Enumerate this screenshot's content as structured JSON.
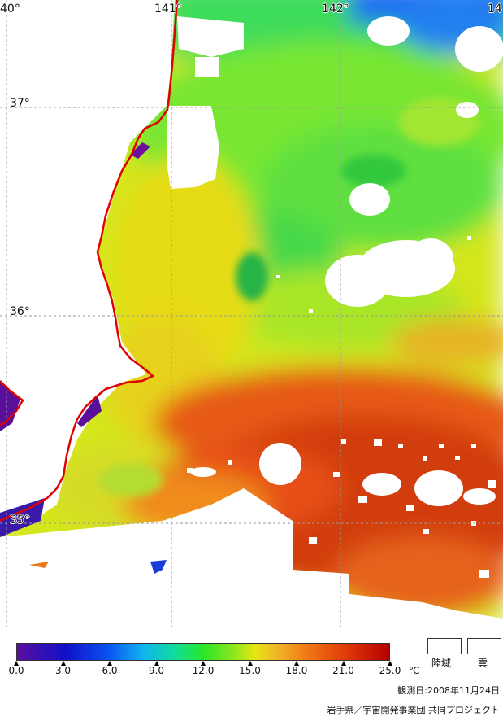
{
  "map": {
    "lon_labels": [
      "40°",
      "141°",
      "142°",
      "14"
    ],
    "lat_labels": [
      "37°",
      "36°",
      "35°"
    ]
  },
  "colorbar": {
    "ticks": [
      "0.0",
      "3.0",
      "6.0",
      "9.0",
      "12.0",
      "15.0",
      "18.0",
      "21.0",
      "25.0"
    ],
    "unit": "℃"
  },
  "legend": {
    "land": "陸域",
    "cloud": "雲"
  },
  "observation_date": "観測日:2008年11月24日",
  "credit": "岩手県／宇宙開発事業団 共同プロジェクト",
  "colors": {
    "coast": "#e00000",
    "grid": "#999999"
  }
}
